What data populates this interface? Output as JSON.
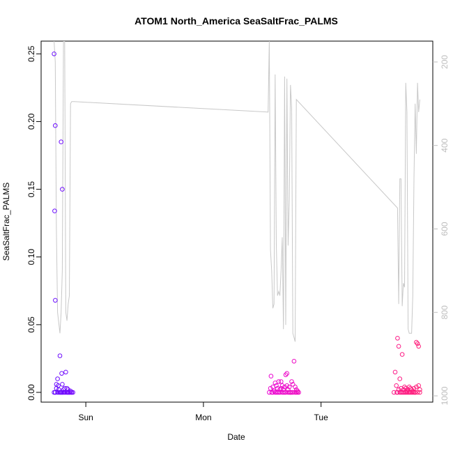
{
  "chart_data": {
    "type": "scatter",
    "title": "ATOM1 North_America SeaSaltFrac_PALMS",
    "xlabel": "Date",
    "ylabel": "SeaSaltFrac_PALMS",
    "x_ticks": [
      "Sun",
      "Mon",
      "Tue"
    ],
    "x_tick_positions_days": [
      1,
      2,
      3
    ],
    "xlim_days": [
      0.62,
      3.95
    ],
    "ylim": [
      -0.0072,
      0.2594
    ],
    "y_ticks": [
      "0.00",
      "0.05",
      "0.10",
      "0.15",
      "0.20",
      "0.25"
    ],
    "y_tick_values": [
      0,
      0.05,
      0.1,
      0.15,
      0.2,
      0.25
    ],
    "right_axis": {
      "ticks": [
        "200",
        "400",
        "600",
        "800",
        "1000"
      ],
      "tick_values": [
        200,
        400,
        600,
        800,
        1000
      ],
      "lim": [
        1015,
        150
      ],
      "line_color": "#c8c8c8",
      "note": "secondary series drawn as grey line (inverted axis)"
    },
    "marker": "open-circle",
    "color_start": "#6a0dff",
    "color_mid": "#e600e6",
    "color_end": "#ff1f7a",
    "series": [
      {
        "x_days": [
          0.73,
          0.73,
          0.735,
          0.74,
          0.74,
          0.74,
          0.75,
          0.75,
          0.76,
          0.76,
          0.765,
          0.77,
          0.77,
          0.78,
          0.78,
          0.785,
          0.79,
          0.79,
          0.795,
          0.8,
          0.8,
          0.8,
          0.81,
          0.81,
          0.82,
          0.82,
          0.83,
          0.83,
          0.84,
          0.84,
          0.845,
          0.85,
          0.85,
          0.86,
          0.86,
          0.87,
          0.87,
          0.88,
          0.88,
          0.89,
          0.74,
          0.8
        ],
        "y": [
          0.25,
          0.0,
          0.134,
          0.197,
          0.068,
          0.0,
          0.006,
          0.003,
          0.01,
          0.0,
          0.005,
          0.0,
          0.002,
          0.0,
          0.027,
          0.0,
          0.185,
          0.0,
          0.014,
          0.15,
          0.0,
          0.006,
          0.0,
          0.002,
          0.0,
          0.003,
          0.015,
          0.0,
          0.0,
          0.003,
          0.0,
          0.0,
          0.002,
          0.0,
          0.0,
          0.0,
          0.001,
          0.0,
          0.0,
          0.0,
          0.0,
          0.0
        ]
      },
      {
        "x_days": [
          2.56,
          2.57,
          2.575,
          2.58,
          2.59,
          2.59,
          2.6,
          2.61,
          2.61,
          2.62,
          2.62,
          2.63,
          2.63,
          2.64,
          2.64,
          2.65,
          2.65,
          2.66,
          2.66,
          2.67,
          2.67,
          2.68,
          2.68,
          2.69,
          2.69,
          2.7,
          2.7,
          2.71,
          2.71,
          2.72,
          2.72,
          2.73,
          2.73,
          2.74,
          2.74,
          2.75,
          2.75,
          2.76,
          2.76,
          2.77,
          2.78,
          2.78,
          2.79,
          2.79,
          2.8,
          2.8,
          2.81
        ],
        "y": [
          0.0,
          0.003,
          0.012,
          0.0,
          0.004,
          0.0,
          0.001,
          0.0,
          0.007,
          0.0,
          0.005,
          0.003,
          0.0,
          0.008,
          0.0,
          0.002,
          0.0,
          0.008,
          0.003,
          0.0,
          0.005,
          0.002,
          0.0,
          0.004,
          0.0,
          0.013,
          0.0,
          0.014,
          0.005,
          0.0,
          0.002,
          0.0,
          0.004,
          0.0,
          0.0,
          0.0,
          0.008,
          0.006,
          0.0,
          0.023,
          0.0,
          0.004,
          0.0,
          0.002,
          0.0,
          0.001,
          0.0
        ]
      },
      {
        "x_days": [
          3.62,
          3.63,
          3.64,
          3.645,
          3.65,
          3.65,
          3.66,
          3.66,
          3.67,
          3.67,
          3.68,
          3.68,
          3.69,
          3.69,
          3.7,
          3.7,
          3.71,
          3.71,
          3.72,
          3.72,
          3.73,
          3.73,
          3.74,
          3.74,
          3.75,
          3.75,
          3.76,
          3.76,
          3.77,
          3.77,
          3.78,
          3.78,
          3.79,
          3.79,
          3.8,
          3.8,
          3.81,
          3.81,
          3.82,
          3.82,
          3.83,
          3.83,
          3.84,
          3.84
        ],
        "y": [
          0.0,
          0.015,
          0.005,
          0.0,
          0.04,
          0.0,
          0.034,
          0.002,
          0.0,
          0.01,
          0.003,
          0.0,
          0.028,
          0.0,
          0.002,
          0.0,
          0.004,
          0.0,
          0.0,
          0.003,
          0.0,
          0.001,
          0.0,
          0.002,
          0.0,
          0.004,
          0.0,
          0.003,
          0.002,
          0.0,
          0.0,
          0.001,
          0.0,
          0.003,
          0.0,
          0.0,
          0.037,
          0.004,
          0.036,
          0.0,
          0.034,
          0.005,
          0.0,
          0.002
        ]
      }
    ],
    "line_series": {
      "x_days": [
        0.73,
        0.74,
        0.75,
        0.76,
        0.78,
        0.79,
        0.8,
        0.81,
        0.82,
        0.83,
        0.84,
        0.85,
        0.86,
        0.87,
        0.88,
        0.89,
        0.9,
        2.55,
        2.56,
        2.57,
        2.58,
        2.59,
        2.6,
        2.61,
        2.62,
        2.63,
        2.64,
        2.65,
        2.66,
        2.67,
        2.68,
        2.69,
        2.7,
        2.71,
        2.72,
        2.73,
        2.74,
        2.75,
        2.76,
        2.77,
        2.78,
        2.79,
        3.65,
        3.66,
        3.67,
        3.68,
        3.69,
        3.7,
        3.71,
        3.72,
        3.73,
        3.74,
        3.75,
        3.76,
        3.77,
        3.78,
        3.79,
        3.8,
        3.81,
        3.82,
        3.83,
        3.84
      ],
      "values": [
        150,
        200,
        600,
        800,
        850,
        800,
        700,
        150,
        150,
        800,
        820,
        780,
        760,
        300,
        295,
        295,
        295,
        320,
        150,
        650,
        700,
        790,
        780,
        230,
        640,
        760,
        750,
        760,
        700,
        620,
        840,
        235,
        830,
        240,
        640,
        530,
        255,
        310,
        850,
        860,
        870,
        290,
        550,
        780,
        480,
        480,
        785,
        730,
        740,
        250,
        320,
        840,
        850,
        850,
        850,
        760,
        480,
        300,
        420,
        250,
        320,
        290
      ]
    }
  }
}
